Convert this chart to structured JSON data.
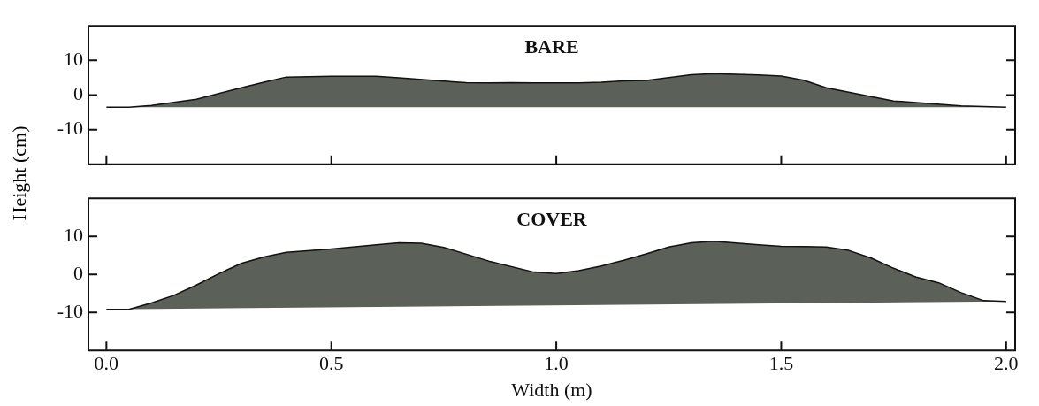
{
  "chart_data": [
    {
      "type": "area",
      "title": "BARE",
      "ylabel": "Height (cm)",
      "tick_labels": "y",
      "xlim": [
        -0.04,
        2.02
      ],
      "xticks": [
        {
          "value": 0,
          "label": null
        },
        {
          "value": 0.5,
          "label": null
        },
        {
          "value": 1,
          "label": null
        },
        {
          "value": 1.5,
          "label": null
        },
        {
          "value": 2,
          "label": null
        }
      ],
      "ylim": [
        -20,
        20
      ],
      "yticks": [
        -10,
        0,
        10
      ],
      "series": [
        {
          "color": "#5b6058",
          "x": [
            0,
            0.05,
            0.1,
            0.2,
            0.3,
            0.35,
            0.4,
            0.5,
            0.6,
            0.65,
            0.75,
            0.8,
            0.85,
            0.9,
            0.95,
            1.0,
            1.05,
            1.1,
            1.15,
            1.2,
            1.3,
            1.35,
            1.45,
            1.5,
            1.55,
            1.6,
            1.75,
            1.9,
            2.0
          ],
          "values": [
            -3.5,
            -3.5,
            -3,
            -1.2,
            2.1,
            3.7,
            5.2,
            5.4,
            5.4,
            5,
            4,
            3.6,
            3.5,
            3.6,
            3.5,
            3.5,
            3.5,
            3.7,
            4.1,
            4.2,
            5.9,
            6.2,
            5.8,
            5.5,
            4.3,
            2.1,
            -1.7,
            -3.1,
            -3.5
          ]
        }
      ]
    },
    {
      "type": "area",
      "title": "COVER",
      "xlabel": "Width (m)",
      "xlim": [
        -0.04,
        2.02
      ],
      "xticks": [
        {
          "value": 0,
          "label": "0.0"
        },
        {
          "value": 0.5,
          "label": "0.5"
        },
        {
          "value": 1,
          "label": "1.0"
        },
        {
          "value": 1.5,
          "label": "1.5"
        },
        {
          "value": 2,
          "label": "2.0"
        }
      ],
      "ylim": [
        -20,
        20
      ],
      "yticks": [
        -10,
        0,
        10
      ],
      "series": [
        {
          "color": "#5b6058",
          "x": [
            0,
            0.05,
            0.1,
            0.15,
            0.2,
            0.25,
            0.3,
            0.35,
            0.4,
            0.5,
            0.6,
            0.65,
            0.7,
            0.75,
            0.85,
            0.95,
            1.0,
            1.05,
            1.1,
            1.15,
            1.2,
            1.25,
            1.3,
            1.35,
            1.45,
            1.5,
            1.55,
            1.6,
            1.65,
            1.7,
            1.75,
            1.8,
            1.85,
            1.9,
            1.95,
            2.0
          ],
          "values": [
            -9.2,
            -9.2,
            -7.5,
            -5.5,
            -2.8,
            0.2,
            2.9,
            4.6,
            5.8,
            6.7,
            7.8,
            8.3,
            8.2,
            7.1,
            3.5,
            0.6,
            0.2,
            1,
            2.2,
            3.7,
            5.4,
            7.2,
            8.3,
            8.7,
            7.8,
            7.4,
            7.3,
            7.2,
            6.3,
            4.3,
            1.6,
            -0.7,
            -2.2,
            -4.8,
            -6.9,
            -7.1
          ]
        }
      ]
    }
  ]
}
